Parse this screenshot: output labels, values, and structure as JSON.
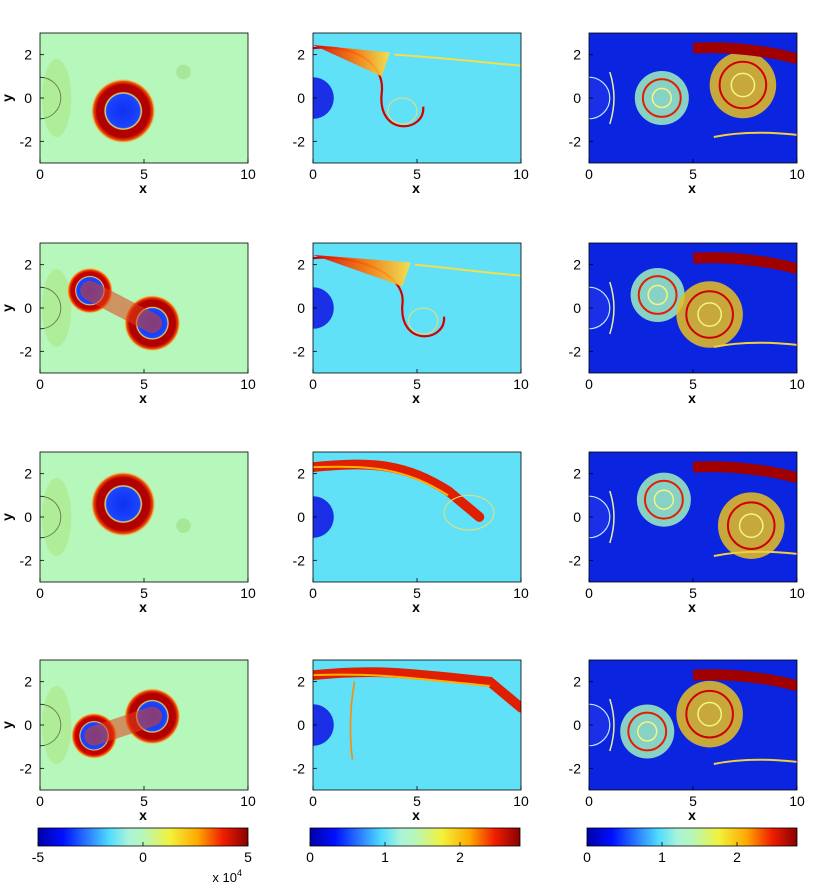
{
  "chart_data": {
    "type": "heatmap",
    "layout": "4 rows x 3 columns of field snapshots around a cylinder at the origin",
    "xlabel": "x",
    "ylabel": "y",
    "xlim": [
      0,
      10
    ],
    "ylim": [
      -3,
      3
    ],
    "xticks": [
      "0",
      "5",
      "10"
    ],
    "yticks": [
      "2",
      "0",
      "-2"
    ],
    "columns": [
      {
        "colormap": "jet",
        "colorbar": {
          "range": [
            -50000,
            50000
          ],
          "ticks": [
            "-5",
            "0",
            "5"
          ],
          "multiplier": "x 10",
          "multiplier_exp": "4"
        },
        "background_value": 0,
        "rows": [
          {
            "vortices": [
              {
                "x": 4.0,
                "y": -0.6,
                "sign": "core-negative"
              }
            ]
          },
          {
            "vortices": [
              {
                "x": 2.4,
                "y": 0.8,
                "sign": "core-negative"
              },
              {
                "x": 5.4,
                "y": -0.7,
                "sign": "core-negative"
              }
            ]
          },
          {
            "vortices": [
              {
                "x": 4.0,
                "y": 0.6,
                "sign": "core-negative"
              }
            ]
          },
          {
            "vortices": [
              {
                "x": 2.6,
                "y": -0.5,
                "sign": "core-negative"
              },
              {
                "x": 5.4,
                "y": 0.4,
                "sign": "core-negative"
              }
            ]
          }
        ]
      },
      {
        "colormap": "jet",
        "colorbar": {
          "range": [
            0,
            2.8
          ],
          "ticks": [
            "0",
            "1",
            "2"
          ]
        },
        "background_value": 1,
        "rows": [
          {
            "feature": "filament from (0,2.3) rolling into ring at (4.3,-0.6)"
          },
          {
            "feature": "filament from (0,2.3) rolling into ring at (5.3,-0.5)"
          },
          {
            "feature": "filament from (0,2.3) arching to (8,0)"
          },
          {
            "feature": "filament from (0,2.3) arching to (10,0.8)"
          }
        ]
      },
      {
        "colormap": "jet",
        "colorbar": {
          "range": [
            0,
            2.8
          ],
          "ticks": [
            "0",
            "1",
            "2"
          ]
        },
        "background_value": 0,
        "rows": [
          {
            "eddies": [
              {
                "x": 3.5,
                "y": 0.0
              },
              {
                "x": 7.4,
                "y": 0.6
              }
            ]
          },
          {
            "eddies": [
              {
                "x": 3.3,
                "y": 0.6
              },
              {
                "x": 5.8,
                "y": -0.3
              }
            ]
          },
          {
            "eddies": [
              {
                "x": 3.6,
                "y": 0.8
              },
              {
                "x": 7.8,
                "y": -0.4
              }
            ]
          },
          {
            "eddies": [
              {
                "x": 2.8,
                "y": -0.3
              },
              {
                "x": 5.8,
                "y": 0.5
              }
            ]
          }
        ]
      }
    ]
  }
}
